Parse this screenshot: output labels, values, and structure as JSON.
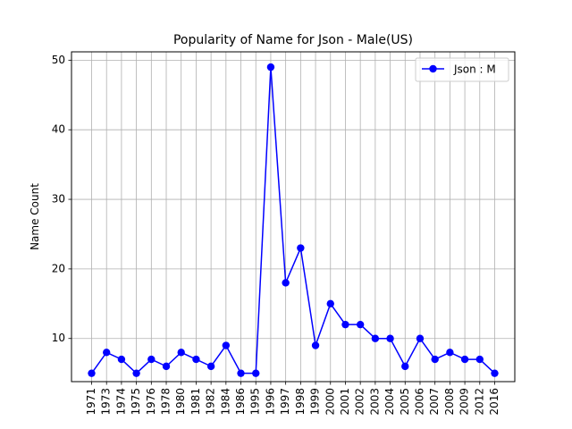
{
  "chart_data": {
    "type": "line",
    "title": "Popularity of Name for Json - Male(US)",
    "xlabel": "",
    "ylabel": "Name Count",
    "categories": [
      "1971",
      "1973",
      "1974",
      "1975",
      "1976",
      "1978",
      "1980",
      "1981",
      "1982",
      "1984",
      "1986",
      "1995",
      "1996",
      "1997",
      "1998",
      "1999",
      "2000",
      "2001",
      "2002",
      "2003",
      "2004",
      "2005",
      "2006",
      "2007",
      "2008",
      "2009",
      "2012",
      "2016"
    ],
    "series": [
      {
        "name": "Json : M",
        "color": "#0000ff",
        "marker": "circle",
        "values": [
          5,
          8,
          7,
          5,
          7,
          6,
          8,
          7,
          6,
          9,
          5,
          5,
          49,
          18,
          23,
          9,
          15,
          12,
          12,
          10,
          10,
          6,
          10,
          7,
          8,
          7,
          7,
          5
        ]
      }
    ],
    "ylim": [
      3.8,
      51.2
    ],
    "yticks": [
      10,
      20,
      30,
      40,
      50
    ],
    "grid": true,
    "legend_position": "top-right"
  }
}
